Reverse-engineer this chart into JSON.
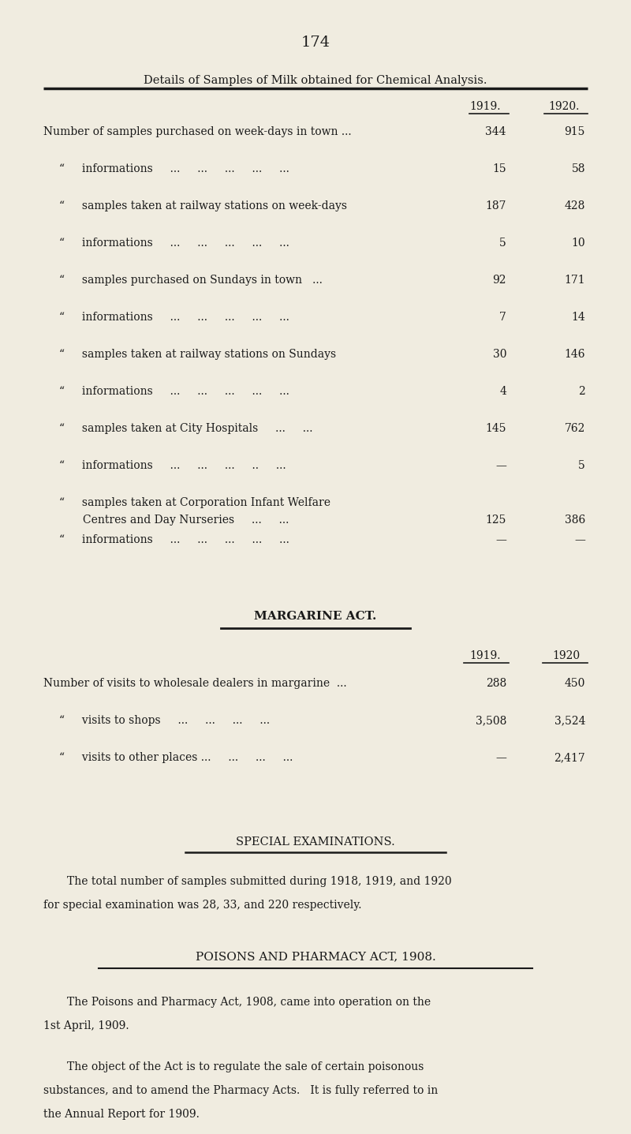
{
  "bg_color": "#f0ece0",
  "page_number": "174",
  "section_title": "Details of Samples of Milk obtained for Chemical Analysis.",
  "col_1919": "1919.",
  "col_1920": "1920.",
  "milk_rows": [
    {
      "label": "Number of samples purchased on week-days in town ...",
      "indent": 0,
      "v1919": "344",
      "v1920": "915"
    },
    {
      "label": "“     informations     ...     ...     ...     ...     ...",
      "indent": 1,
      "v1919": "15",
      "v1920": "58"
    },
    {
      "label": "“     samples taken at railway stations on week-days",
      "indent": 1,
      "v1919": "187",
      "v1920": "428"
    },
    {
      "label": "“     informations     ...     ...     ...     ...     ...",
      "indent": 1,
      "v1919": "5",
      "v1920": "10"
    },
    {
      "label": "“     samples purchased on Sundays in town   ...",
      "indent": 1,
      "v1919": "92",
      "v1920": "171"
    },
    {
      "label": "“     informations     ...     ...     ...     ...     ...",
      "indent": 1,
      "v1919": "7",
      "v1920": "14"
    },
    {
      "label": "“     samples taken at railway stations on Sundays",
      "indent": 1,
      "v1919": "30",
      "v1920": "146"
    },
    {
      "label": "“     informations     ...     ...     ...     ...     ...",
      "indent": 1,
      "v1919": "4",
      "v1920": "2"
    },
    {
      "label": "“     samples taken at City Hospitals     ...     ...",
      "indent": 1,
      "v1919": "145",
      "v1920": "762"
    },
    {
      "label": "“     informations     ...     ...     ...     ..     ...",
      "indent": 1,
      "v1919": "—",
      "v1920": "5"
    },
    {
      "label": "“     samples taken at Corporation Infant Welfare\n          Centres and Day Nurseries     ...     ...",
      "indent": 1,
      "v1919": "125",
      "v1920": "386"
    },
    {
      "label": "“     informations     ...     ...     ...     ...     ...",
      "indent": 1,
      "v1919": "—",
      "v1920": "—"
    }
  ],
  "margarine_title": "MARGARINE ACT.",
  "marg_col_1919": "1919.",
  "marg_col_1920": "1920",
  "marg_rows": [
    {
      "label": "Number of visits to wholesale dealers in margarine  ...",
      "v1919": "288",
      "v1920": "450"
    },
    {
      "label": "“     visits to shops     ...     ...     ...     ...",
      "v1919": "3,508",
      "v1920": "3,524"
    },
    {
      "label": "“     visits to other places ...     ...     ...     ...",
      "v1919": "—",
      "v1920": "2,417"
    }
  ],
  "special_title": "SPECIAL EXAMINATIONS.",
  "special_text": "The total number of samples submitted during 1918, 1919, and 1920\nfor special examination was 28, 33, and 220 respectively.",
  "poisons_title": "POISONS AND PHARMACY ACT, 1908.",
  "poisons_para1": "The Poisons and Pharmacy Act, 1908, came into operation on the\n1st April, 1909.",
  "poisons_para2": "The object of the Act is to regulate the sale of certain poisonous\nsubstances, and to amend the Pharmacy Acts.   It is fully referred to in\nthe Annual Report for 1909.",
  "text_color": "#1a1a1a",
  "font_size_body": 10,
  "font_size_title": 11,
  "font_size_section": 12,
  "font_size_page": 14
}
